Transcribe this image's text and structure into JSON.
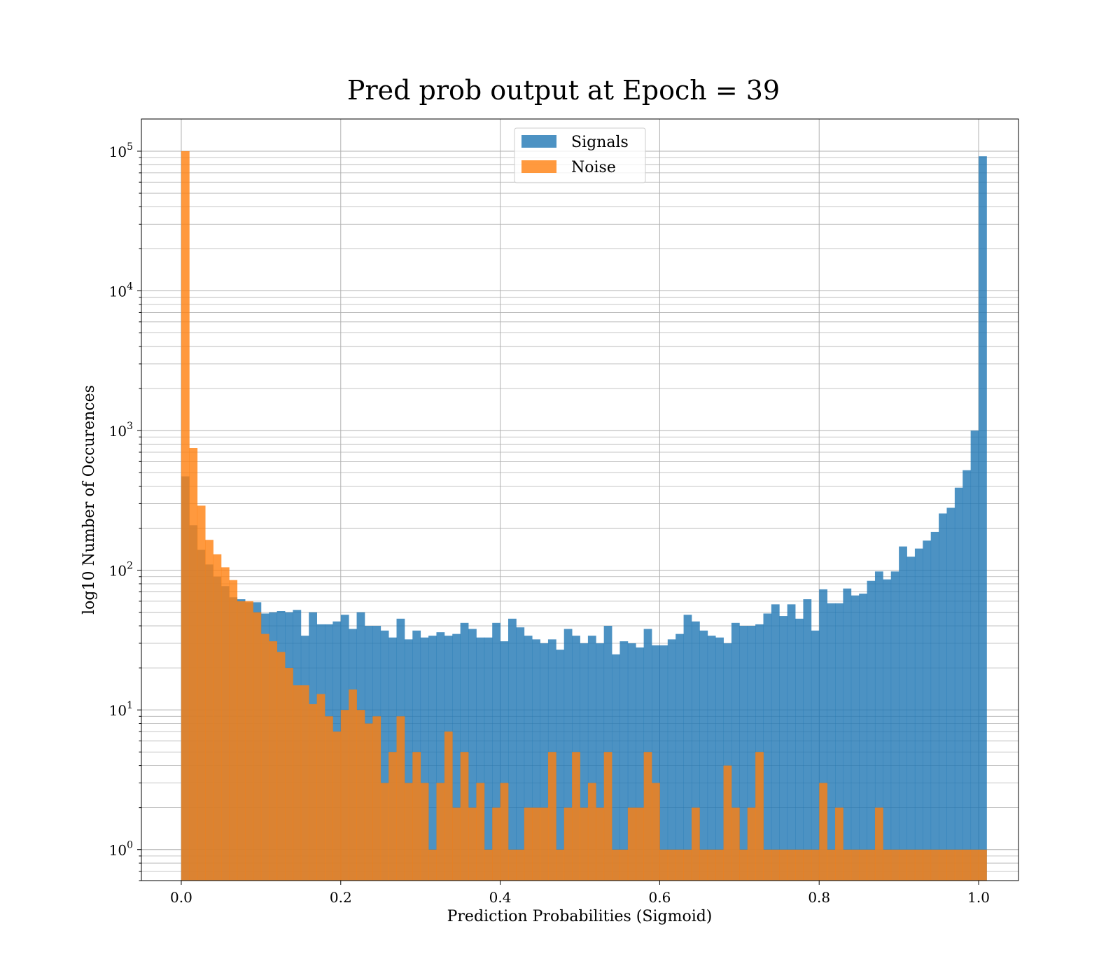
{
  "chart_data": {
    "type": "bar",
    "title": "Pred prob output at Epoch = 39",
    "xlabel": "Prediction Probabilities (Sigmoid)",
    "ylabel": "log10 Number of Occurences",
    "y_scale": "log",
    "xlim": [
      -0.05,
      1.05
    ],
    "ylim": [
      0.6,
      170000
    ],
    "grid": true,
    "legend_position": "top-center",
    "bin_width": 0.01,
    "bin_start": 0.0,
    "x_ticks": [
      0.0,
      0.2,
      0.4,
      0.6,
      0.8,
      1.0
    ],
    "x_tick_labels": [
      "0.0",
      "0.2",
      "0.4",
      "0.6",
      "0.8",
      "1.0"
    ],
    "y_ticks": [
      1,
      10,
      100,
      1000,
      10000,
      100000
    ],
    "y_tick_labels": [
      {
        "base": "10",
        "exp": "0"
      },
      {
        "base": "10",
        "exp": "1"
      },
      {
        "base": "10",
        "exp": "2"
      },
      {
        "base": "10",
        "exp": "3"
      },
      {
        "base": "10",
        "exp": "4"
      },
      {
        "base": "10",
        "exp": "5"
      }
    ],
    "series": [
      {
        "name": "Signals",
        "color": "#1f77b4",
        "opacity": 0.8,
        "values": [
          470,
          210,
          140,
          110,
          90,
          77,
          64,
          62,
          59,
          59,
          49,
          50,
          51,
          50,
          52,
          34,
          50,
          41,
          41,
          43,
          48,
          38,
          50,
          40,
          40,
          37,
          33,
          45,
          32,
          37,
          33,
          34,
          36,
          34,
          35,
          42,
          38,
          33,
          33,
          42,
          31,
          45,
          39,
          34,
          32,
          30,
          32,
          27,
          38,
          34,
          30,
          34,
          30,
          40,
          25,
          31,
          30,
          28,
          38,
          29,
          29,
          32,
          35,
          48,
          43,
          37,
          34,
          33,
          30,
          42,
          40,
          40,
          41,
          49,
          57,
          47,
          57,
          45,
          62,
          37,
          73,
          58,
          58,
          74,
          66,
          68,
          84,
          98,
          86,
          98,
          148,
          125,
          143,
          163,
          188,
          255,
          280,
          390,
          520,
          1000,
          92000
        ]
      },
      {
        "name": "Noise",
        "color": "#ff7f0e",
        "opacity": 0.8,
        "values": [
          100000,
          750,
          290,
          165,
          130,
          105,
          85,
          60,
          60,
          50,
          35,
          31,
          26,
          20,
          15,
          15,
          11,
          13,
          9,
          7,
          10,
          14,
          10,
          8,
          9,
          3,
          5,
          9,
          3,
          5,
          3,
          1,
          3,
          7,
          2,
          5,
          2,
          3,
          1,
          2,
          3,
          1,
          1,
          2,
          2,
          2,
          5,
          1,
          2,
          5,
          2,
          3,
          2,
          5,
          1,
          1,
          2,
          2,
          5,
          3,
          1,
          1,
          1,
          1,
          2,
          1,
          1,
          1,
          4,
          2,
          1,
          2,
          5,
          1,
          1,
          1,
          1,
          1,
          1,
          1,
          3,
          1,
          2,
          1,
          1,
          1,
          1,
          2,
          1,
          1,
          1,
          1,
          1,
          1,
          1,
          1,
          1,
          1,
          1,
          1,
          1
        ]
      }
    ]
  }
}
